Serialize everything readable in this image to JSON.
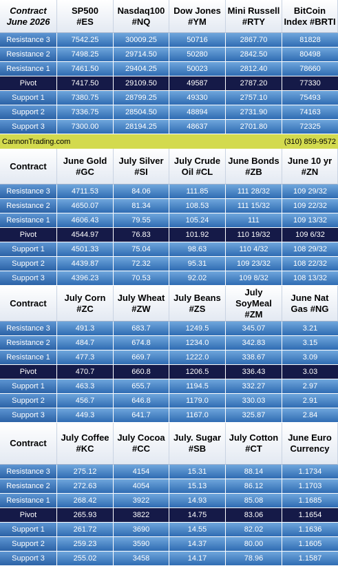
{
  "blocks": [
    {
      "header": [
        [
          "Contract",
          "June 2026"
        ],
        [
          "SP500",
          "#ES"
        ],
        [
          "Nasdaq100",
          "#NQ"
        ],
        [
          "Dow Jones",
          "#YM"
        ],
        [
          "Mini Russell",
          "#RTY"
        ],
        [
          "BitCoin",
          "Index #BRTI"
        ]
      ],
      "rows": [
        {
          "label": "Resistance 3",
          "values": [
            "7542.25",
            "30009.25",
            "50716",
            "2867.70",
            "81828"
          ]
        },
        {
          "label": "Resistance 2",
          "values": [
            "7498.25",
            "29714.50",
            "50280",
            "2842.50",
            "80498"
          ]
        },
        {
          "label": "Resistance 1",
          "values": [
            "7461.50",
            "29404.25",
            "50023",
            "2812.40",
            "78660"
          ]
        },
        {
          "label": "Pivot",
          "values": [
            "7417.50",
            "29109.50",
            "49587",
            "2787.20",
            "77330"
          ]
        },
        {
          "label": "Support 1",
          "values": [
            "7380.75",
            "28799.25",
            "49330",
            "2757.10",
            "75493"
          ]
        },
        {
          "label": "Support 2",
          "values": [
            "7336.75",
            "28504.50",
            "48894",
            "2731.90",
            "74163"
          ]
        },
        {
          "label": "Support 3",
          "values": [
            "7300.00",
            "28194.25",
            "48637",
            "2701.80",
            "72325"
          ]
        }
      ]
    },
    {
      "header": [
        [
          "Contract"
        ],
        [
          "June Gold",
          "#GC"
        ],
        [
          "July Silver",
          "#SI"
        ],
        [
          "July Crude",
          "Oil #CL"
        ],
        [
          "June Bonds",
          "#ZB"
        ],
        [
          "June 10 yr",
          "#ZN"
        ]
      ],
      "rows": [
        {
          "label": "Resistance 3",
          "values": [
            "4711.53",
            "84.06",
            "111.85",
            "111 28/32",
            "109 29/32"
          ]
        },
        {
          "label": "Resistance 2",
          "values": [
            "4650.07",
            "81.34",
            "108.53",
            "111 15/32",
            "109 22/32"
          ]
        },
        {
          "label": "Resistance 1",
          "values": [
            "4606.43",
            "79.55",
            "105.24",
            "111",
            "109 13/32"
          ]
        },
        {
          "label": "Pivot",
          "values": [
            "4544.97",
            "76.83",
            "101.92",
            "110 19/32",
            "109 6/32"
          ]
        },
        {
          "label": "Support 1",
          "values": [
            "4501.33",
            "75.04",
            "98.63",
            "110 4/32",
            "108 29/32"
          ]
        },
        {
          "label": "Support 2",
          "values": [
            "4439.87",
            "72.32",
            "95.31",
            "109 23/32",
            "108 22/32"
          ]
        },
        {
          "label": "Support 3",
          "values": [
            "4396.23",
            "70.53",
            "92.02",
            "109 8/32",
            "108 13/32"
          ]
        }
      ]
    },
    {
      "header": [
        [
          "Contract"
        ],
        [
          "July Corn",
          "#ZC"
        ],
        [
          "July  Wheat",
          "#ZW"
        ],
        [
          "July Beans",
          "#ZS"
        ],
        [
          "July",
          "SoyMeal",
          "#ZM"
        ],
        [
          "June Nat",
          "Gas #NG"
        ]
      ],
      "rows": [
        {
          "label": "Resistance 3",
          "values": [
            "491.3",
            "683.7",
            "1249.5",
            "345.07",
            "3.21"
          ]
        },
        {
          "label": "Resistance 2",
          "values": [
            "484.7",
            "674.8",
            "1234.0",
            "342.83",
            "3.15"
          ]
        },
        {
          "label": "Resistance 1",
          "values": [
            "477.3",
            "669.7",
            "1222.0",
            "338.67",
            "3.09"
          ]
        },
        {
          "label": "Pivot",
          "values": [
            "470.7",
            "660.8",
            "1206.5",
            "336.43",
            "3.03"
          ]
        },
        {
          "label": "Support 1",
          "values": [
            "463.3",
            "655.7",
            "1194.5",
            "332.27",
            "2.97"
          ]
        },
        {
          "label": "Support 2",
          "values": [
            "456.7",
            "646.8",
            "1179.0",
            "330.03",
            "2.91"
          ]
        },
        {
          "label": "Support 3",
          "values": [
            "449.3",
            "641.7",
            "1167.0",
            "325.87",
            "2.84"
          ]
        }
      ]
    },
    {
      "header": [
        [
          "Contract"
        ],
        [
          "July Coffee",
          "#KC"
        ],
        [
          "July Cocoa",
          "#CC"
        ],
        [
          "July. Sugar",
          "#SB"
        ],
        [
          "July Cotton",
          "#CT"
        ],
        [
          "June Euro",
          "Currency"
        ]
      ],
      "rows": [
        {
          "label": "Resistance 3",
          "values": [
            "275.12",
            "4154",
            "15.31",
            "88.14",
            "1.1734"
          ]
        },
        {
          "label": "Resistance 2",
          "values": [
            "272.63",
            "4054",
            "15.13",
            "86.12",
            "1.1703"
          ]
        },
        {
          "label": "Resistance 1",
          "values": [
            "268.42",
            "3922",
            "14.93",
            "85.08",
            "1.1685"
          ]
        },
        {
          "label": "Pivot",
          "values": [
            "265.93",
            "3822",
            "14.75",
            "83.06",
            "1.1654"
          ]
        },
        {
          "label": "Support 1",
          "values": [
            "261.72",
            "3690",
            "14.55",
            "82.02",
            "1.1636"
          ]
        },
        {
          "label": "Support 2",
          "values": [
            "259.23",
            "3590",
            "14.37",
            "80.00",
            "1.1605"
          ]
        },
        {
          "label": "Support 3",
          "values": [
            "255.02",
            "3458",
            "14.17",
            "78.96",
            "1.1587"
          ]
        }
      ]
    }
  ],
  "banner": {
    "site": "CannonTrading.com",
    "phone": "(310) 859-9572"
  }
}
